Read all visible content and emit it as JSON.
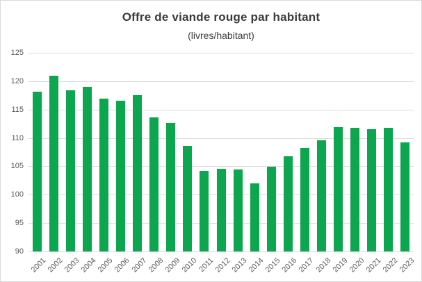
{
  "window": {
    "background": "#FFFFFF",
    "border_color": "#D9D9D9"
  },
  "chart_data": {
    "type": "bar",
    "title": "Offre de viande rouge par habitant",
    "subtitle": "(livres/habitant)",
    "categories": [
      "2001",
      "2002",
      "2003",
      "2004",
      "2005",
      "2006",
      "2007",
      "2008",
      "2009",
      "2010",
      "2011",
      "2012",
      "2013",
      "2014",
      "2015",
      "2016",
      "2017",
      "2018",
      "2019",
      "2020",
      "2021",
      "2022",
      "2023"
    ],
    "values": [
      118.2,
      121.0,
      118.4,
      119.0,
      116.9,
      116.5,
      117.5,
      113.6,
      112.7,
      108.6,
      104.2,
      104.6,
      104.5,
      102.0,
      104.9,
      106.8,
      108.2,
      109.6,
      111.9,
      111.8,
      111.5,
      111.8,
      109.2
    ],
    "xlabel": "",
    "ylabel": "",
    "ylim": [
      90,
      125
    ],
    "yticks": [
      90,
      95,
      100,
      105,
      110,
      115,
      120,
      125
    ],
    "grid": true,
    "legend": false,
    "colors": {
      "bar": "#0BA64D",
      "gridline": "#DCDCDC",
      "axis_text": "#595959",
      "title_text": "#3B3B3B"
    }
  }
}
